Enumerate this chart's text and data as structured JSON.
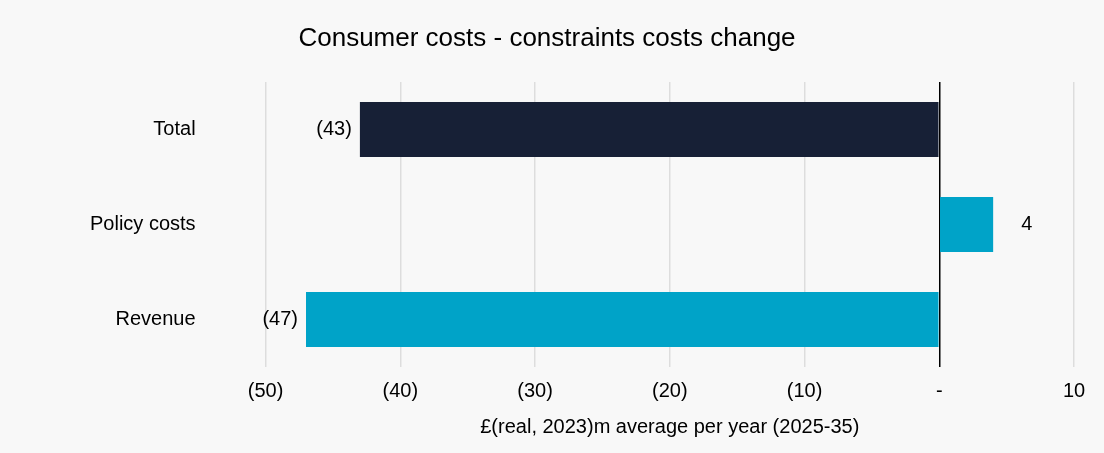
{
  "chart_data": {
    "type": "bar",
    "orientation": "horizontal",
    "title": "Consumer costs - constraints costs change",
    "xlabel": "£(real, 2023)m average per year (2025-35)",
    "categories": [
      "Total",
      "Policy costs",
      "Revenue"
    ],
    "values": [
      -43,
      4,
      -47
    ],
    "colors": [
      "#172036",
      "#00a3c8",
      "#00a3c8"
    ],
    "value_labels": [
      "(43)",
      "4",
      "(47)"
    ],
    "xlim": [
      -50,
      10
    ],
    "xticks": [
      {
        "value": -50,
        "label": "(50)"
      },
      {
        "value": -40,
        "label": "(40)"
      },
      {
        "value": -30,
        "label": "(30)"
      },
      {
        "value": -20,
        "label": "(20)"
      },
      {
        "value": -10,
        "label": "(10)"
      },
      {
        "value": 0,
        "label": "-"
      },
      {
        "value": 10,
        "label": "10"
      }
    ],
    "grid": "x",
    "legend": false
  }
}
